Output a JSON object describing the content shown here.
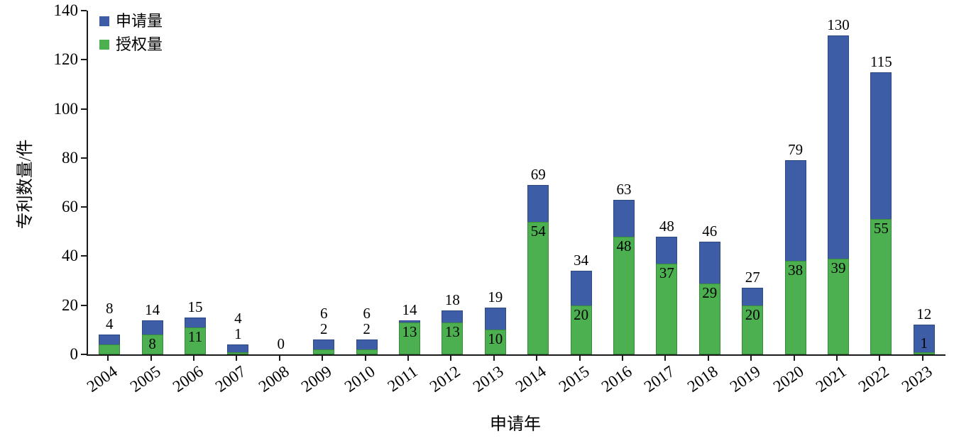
{
  "chart_data": {
    "type": "bar",
    "title": "",
    "xlabel": "申请年",
    "ylabel": "专利数量/件",
    "ylim": [
      0,
      140
    ],
    "yticks": [
      0,
      20,
      40,
      60,
      80,
      100,
      120,
      140
    ],
    "grid": false,
    "legend_position": "top-left",
    "bar_style": "overlaid (授权量 drawn in front of 申请量)",
    "categories": [
      "2004",
      "2005",
      "2006",
      "2007",
      "2008",
      "2009",
      "2010",
      "2011",
      "2012",
      "2013",
      "2014",
      "2015",
      "2016",
      "2017",
      "2018",
      "2019",
      "2020",
      "2021",
      "2022",
      "2023"
    ],
    "series": [
      {
        "name": "申请量",
        "color": "#3d5da7",
        "values": [
          8,
          14,
          15,
          4,
          0,
          6,
          6,
          14,
          18,
          19,
          69,
          34,
          63,
          48,
          46,
          27,
          79,
          130,
          115,
          12
        ]
      },
      {
        "name": "授权量",
        "color": "#4caf50",
        "values": [
          4,
          8,
          11,
          1,
          0,
          2,
          2,
          13,
          13,
          10,
          54,
          20,
          48,
          37,
          29,
          20,
          38,
          39,
          55,
          1
        ]
      }
    ]
  },
  "legend": {
    "items": [
      {
        "label": "申请量",
        "color": "#3d5da7"
      },
      {
        "label": "授权量",
        "color": "#4caf50"
      }
    ]
  },
  "axes": {
    "x_title": "申请年",
    "y_title": "专利数量/件"
  }
}
